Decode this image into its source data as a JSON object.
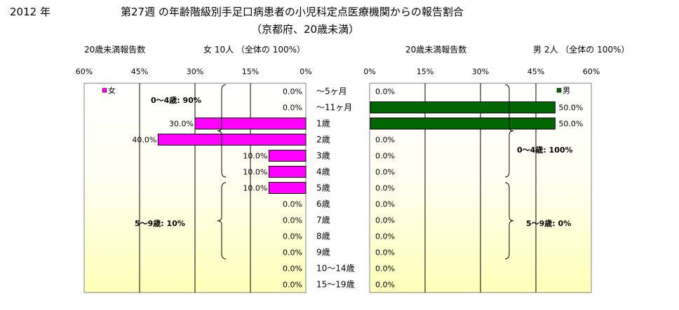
{
  "header": {
    "year_label": "2012 年",
    "title": "第27週 の年齢階級別手足口病患者の小児科定点医療機関からの報告割合",
    "subtitle": "（京都府、20歳未満）"
  },
  "left_panel": {
    "caption": "20歳未満報告数",
    "total_text": "女  10人  （全体の  100%）"
  },
  "right_panel": {
    "caption": "20歳未満報告数",
    "total_text": "男  2人  （全体の  100%）"
  },
  "chart_data": [
    {
      "type": "bar",
      "orientation": "horizontal",
      "direction": "right-to-left",
      "legend": "女",
      "legend_position": "top-left",
      "color": "#ff00ff",
      "categories": [
        "～5ヶ月",
        "～11ヶ月",
        "1歳",
        "2歳",
        "3歳",
        "4歳",
        "5歳",
        "6歳",
        "7歳",
        "8歳",
        "9歳",
        "10～14歳",
        "15～19歳"
      ],
      "values": [
        0,
        0,
        30,
        40,
        10,
        10,
        10,
        0,
        0,
        0,
        0,
        0,
        0
      ],
      "value_labels": [
        "0.0%",
        "0.0%",
        "30.0%",
        "40.0%",
        "10.0%",
        "10.0%",
        "10.0%",
        "0.0%",
        "0.0%",
        "0.0%",
        "0.0%",
        "0.0%",
        "0.0%"
      ],
      "xlim": [
        0,
        60
      ],
      "ticks": [
        "60%",
        "45%",
        "30%",
        "15%",
        "0%"
      ],
      "grid": true,
      "group_annotations": [
        "0～4歳: 90%",
        "5～9歳: 10%"
      ]
    },
    {
      "type": "bar",
      "orientation": "horizontal",
      "direction": "left-to-right",
      "legend": "男",
      "legend_position": "top-right",
      "color": "#006600",
      "categories": [
        "～5ヶ月",
        "～11ヶ月",
        "1歳",
        "2歳",
        "3歳",
        "4歳",
        "5歳",
        "6歳",
        "7歳",
        "8歳",
        "9歳",
        "10～14歳",
        "15～19歳"
      ],
      "values": [
        0,
        50,
        50,
        0,
        0,
        0,
        0,
        0,
        0,
        0,
        0,
        0,
        0
      ],
      "value_labels": [
        "0.0%",
        "50.0%",
        "50.0%",
        "0.0%",
        "0.0%",
        "0.0%",
        "0.0%",
        "0.0%",
        "0.0%",
        "0.0%",
        "0.0%",
        "0.0%",
        "0.0%"
      ],
      "xlim": [
        0,
        60
      ],
      "ticks": [
        "0%",
        "15%",
        "30%",
        "45%",
        "60%"
      ],
      "grid": true,
      "group_annotations": [
        "0～4歳: 100%",
        "5～9歳:   0%"
      ]
    }
  ]
}
